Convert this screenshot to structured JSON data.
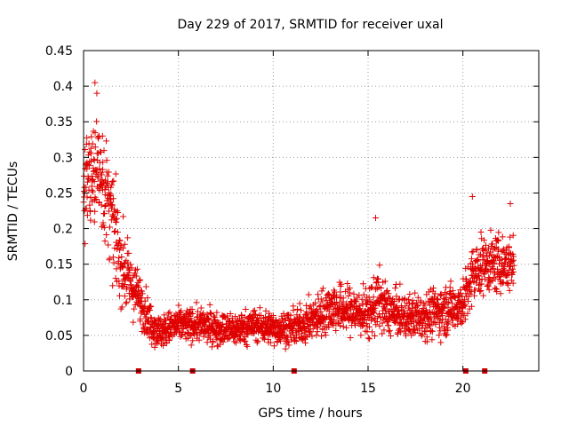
{
  "chart_data": {
    "type": "scatter",
    "title": "Day 229 of 2017, SRMTID for receiver uxal",
    "xlabel": "GPS time / hours",
    "ylabel": "SRMTID / TECUs",
    "xlim": [
      0,
      24
    ],
    "ylim": [
      0,
      0.45
    ],
    "x_ticks": [
      0,
      5,
      10,
      15,
      20
    ],
    "x_tick_labels": [
      "0",
      "5",
      "10",
      "15",
      "20"
    ],
    "y_ticks": [
      0,
      0.05,
      0.1,
      0.15,
      0.2,
      0.25,
      0.3,
      0.35,
      0.4,
      0.45
    ],
    "y_tick_labels": [
      "0",
      "0.05",
      "0.1",
      "0.15",
      "0.2",
      "0.25",
      "0.3",
      "0.35",
      "0.4",
      "0.45"
    ],
    "grid": true,
    "marker": "+",
    "color": "#e00000",
    "gap_markers_x": [
      2.9,
      5.75,
      11.1,
      20.15,
      21.15
    ],
    "series_profile": {
      "name": "SRMTID",
      "x_range": [
        0,
        22.7
      ],
      "knots_x": [
        0,
        0.5,
        1,
        1.5,
        2,
        2.5,
        3,
        3.5,
        4,
        5,
        6,
        7,
        8,
        9,
        10,
        11,
        12,
        13,
        14,
        15,
        15.5,
        16,
        17,
        18,
        19,
        20,
        20.5,
        21,
        22,
        22.7
      ],
      "knots_y_median": [
        0.25,
        0.29,
        0.27,
        0.21,
        0.15,
        0.12,
        0.1,
        0.07,
        0.055,
        0.065,
        0.065,
        0.06,
        0.058,
        0.065,
        0.06,
        0.06,
        0.07,
        0.09,
        0.085,
        0.08,
        0.1,
        0.085,
        0.075,
        0.08,
        0.085,
        0.095,
        0.13,
        0.15,
        0.15,
        0.15
      ],
      "knots_spread": [
        0.06,
        0.07,
        0.07,
        0.06,
        0.05,
        0.035,
        0.03,
        0.025,
        0.02,
        0.02,
        0.02,
        0.02,
        0.02,
        0.02,
        0.02,
        0.02,
        0.025,
        0.03,
        0.03,
        0.03,
        0.04,
        0.03,
        0.025,
        0.03,
        0.03,
        0.03,
        0.04,
        0.035,
        0.035,
        0.035
      ],
      "peaks": [
        {
          "x": 0.6,
          "y": 0.405
        },
        {
          "x": 0.7,
          "y": 0.39
        },
        {
          "x": 1.0,
          "y": 0.33
        },
        {
          "x": 15.4,
          "y": 0.215
        },
        {
          "x": 20.5,
          "y": 0.245
        },
        {
          "x": 22.5,
          "y": 0.235
        }
      ]
    }
  }
}
